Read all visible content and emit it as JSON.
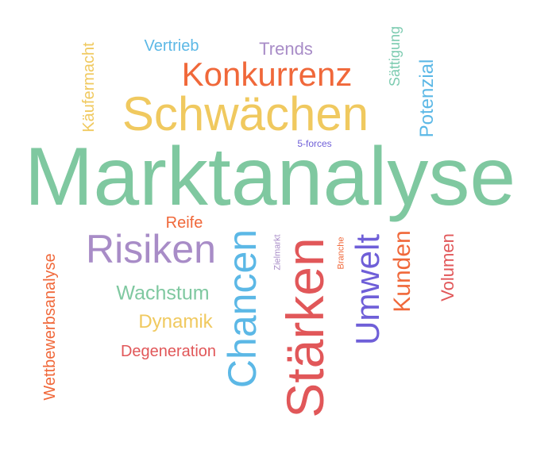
{
  "colors": {
    "green": "#7fc8a0",
    "yellow": "#f0c95f",
    "orange": "#f0683a",
    "red": "#e15759",
    "purple": "#a88cc7",
    "blue": "#5cb8e6",
    "indigo": "#6f5fd8",
    "teal": "#7ccbb0"
  },
  "words": {
    "marktanalyse": "Marktanalyse",
    "schwaechen": "Schwächen",
    "konkurrenz": "Konkurrenz",
    "trends": "Trends",
    "vertrieb": "Vertrieb",
    "kaeufermacht": "Käufermacht",
    "saettigung": "Sättigung",
    "potenzial": "Potenzial",
    "five_forces": "5-forces",
    "reife": "Reife",
    "risiken": "Risiken",
    "wachstum": "Wachstum",
    "dynamik": "Dynamik",
    "degeneration": "Degeneration",
    "wettbewerbsanalyse": "Wettbewerbsanalyse",
    "chancen": "Chancen",
    "zielmarkt": "Zielmarkt",
    "staerken": "Stärken",
    "branche": "Branche",
    "umwelt": "Umwelt",
    "kunden": "Kunden",
    "volumen": "Volumen"
  }
}
